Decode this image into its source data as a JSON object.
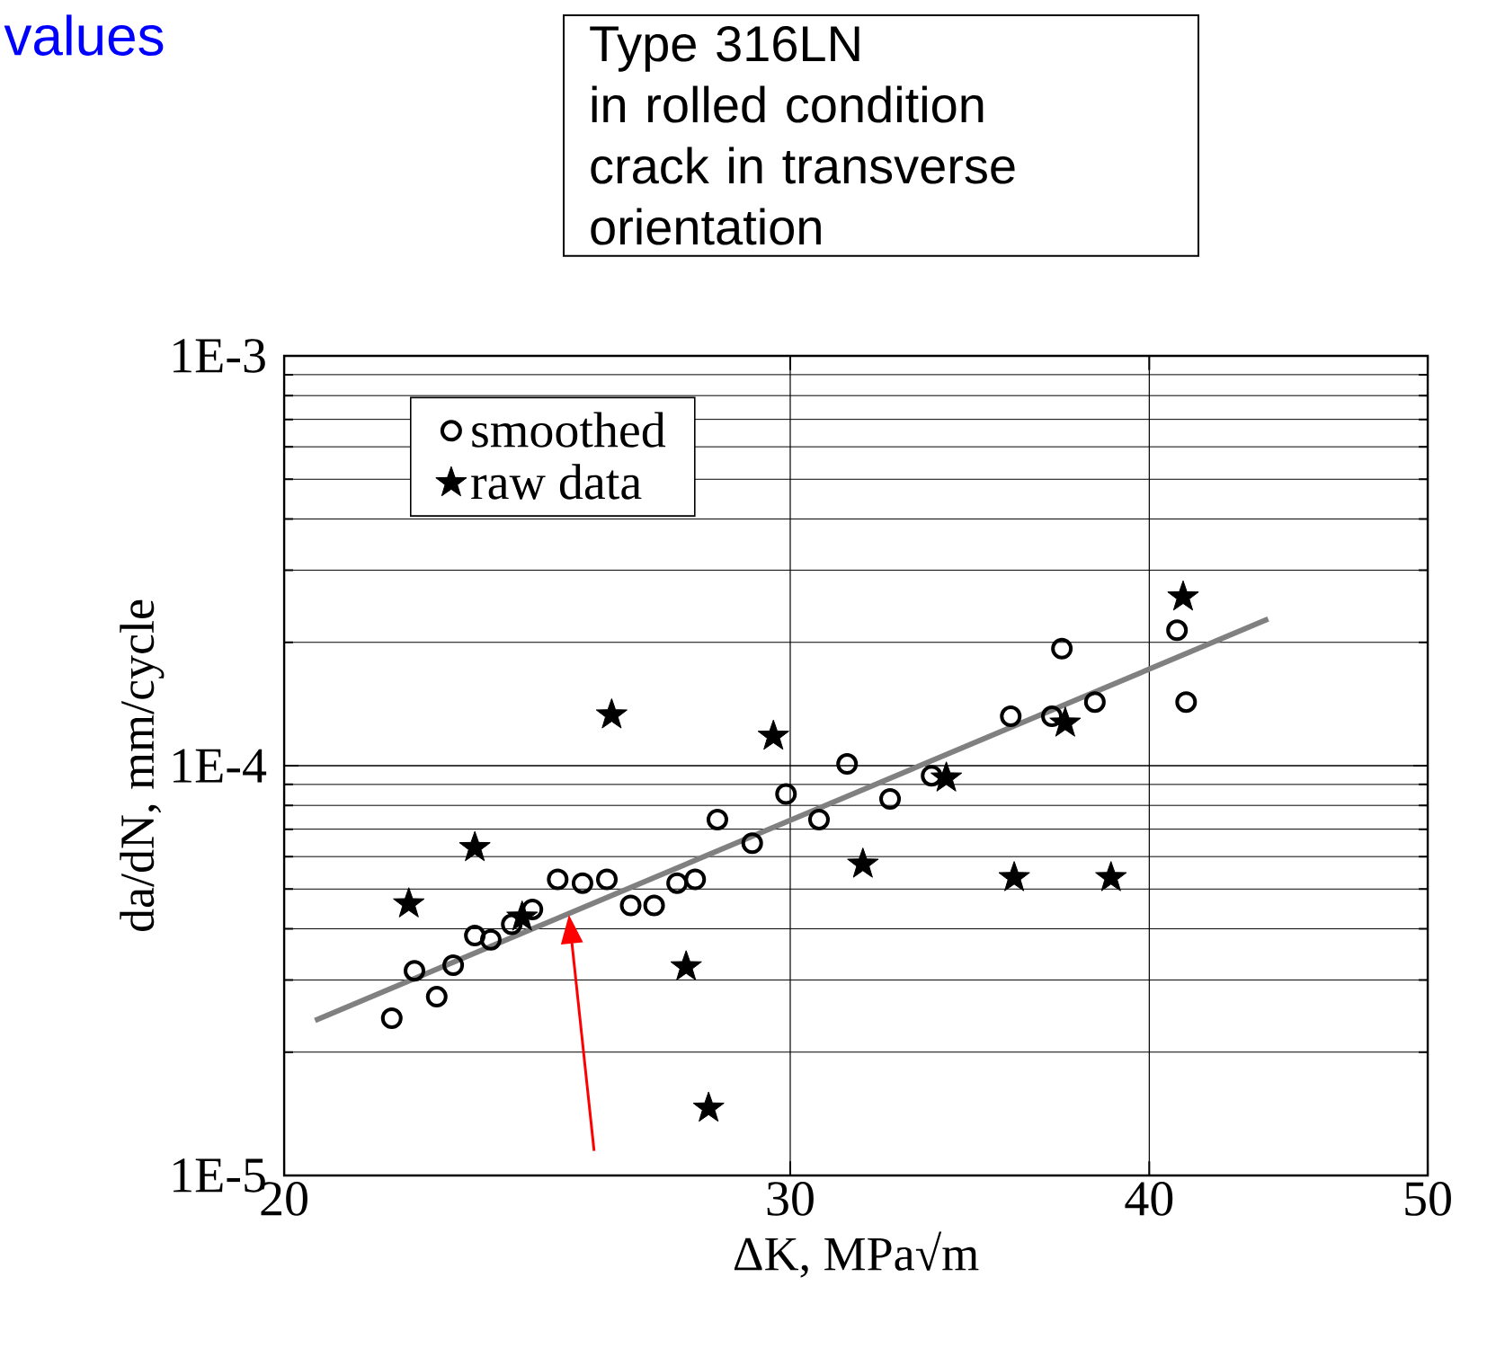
{
  "chart_data": {
    "type": "scatter",
    "title": "values",
    "annotations": [
      "Type 316LN\nin rolled condition\ncrack in transverse\norientation"
    ],
    "xlabel": "ΔK, MPa√m",
    "ylabel": "da/dN, mm/cycle",
    "log": "xy",
    "grid": true,
    "legend": "top left",
    "xlim": [
      20,
      50
    ],
    "xticks": [
      20,
      30,
      40,
      50
    ],
    "ylim": [
      1e-05,
      0.001
    ],
    "yticks": [
      {
        "value": 1e-05,
        "label": "1E-5"
      },
      {
        "value": 0.0001,
        "label": "1E-4"
      },
      {
        "value": 0.001,
        "label": "1E-3"
      }
    ],
    "series": [
      {
        "name": "smoothed",
        "marker": "circle",
        "color": "#000000",
        "x": [
          21.8,
          22.2,
          22.6,
          22.9,
          23.3,
          23.6,
          24.0,
          24.4,
          24.9,
          25.4,
          25.9,
          26.4,
          26.9,
          27.4,
          27.8,
          28.3,
          29.1,
          29.9,
          30.7,
          31.4,
          32.5,
          33.6,
          35.8,
          37.0,
          37.3,
          38.3,
          40.9,
          41.2
        ],
        "values": [
          2.42e-05,
          3.16e-05,
          2.73e-05,
          3.26e-05,
          3.85e-05,
          3.76e-05,
          4.1e-05,
          4.46e-05,
          5.28e-05,
          5.17e-05,
          5.28e-05,
          4.56e-05,
          4.56e-05,
          5.17e-05,
          5.28e-05,
          7.39e-05,
          6.47e-05,
          8.53e-05,
          7.39e-05,
          0.000101,
          8.3e-05,
          9.45e-05,
          0.000132,
          0.000132,
          0.000193,
          0.000143,
          0.000214,
          0.000143
        ]
      },
      {
        "name": "raw data",
        "marker": "star",
        "color": "#000000",
        "x": [
          22.1,
          23.3,
          24.2,
          26.0,
          27.6,
          28.1,
          29.6,
          31.8,
          34.0,
          35.9,
          37.4,
          38.8,
          41.1
        ],
        "values": [
          4.6e-05,
          6.31e-05,
          4.27e-05,
          0.000133,
          3.23e-05,
          1.46e-05,
          0.000118,
          5.75e-05,
          9.33e-05,
          5.33e-05,
          0.000127,
          5.33e-05,
          0.000258
        ]
      },
      {
        "type": "line",
        "line_style": "solid",
        "marker": "none",
        "color": "#808080",
        "x": [
          20.5,
          44.0
        ],
        "values": [
          2.39e-05,
          0.000228
        ]
      }
    ]
  }
}
